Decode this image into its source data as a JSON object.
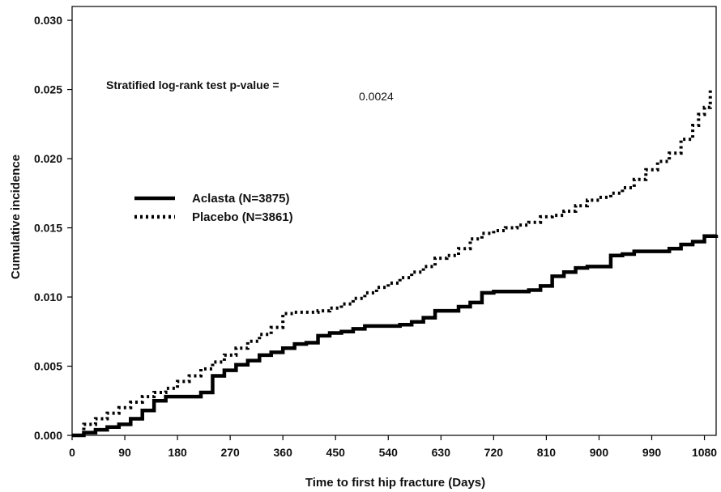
{
  "chart_data": {
    "type": "line",
    "title": "",
    "xlabel": "Time to first hip fracture (Days)",
    "ylabel": "Cumulative incidence",
    "xlim": [
      0,
      1100
    ],
    "ylim": [
      0,
      0.031
    ],
    "x_ticks": [
      0,
      90,
      180,
      270,
      360,
      450,
      540,
      630,
      720,
      810,
      900,
      990,
      1080
    ],
    "x_tick_labels": [
      "0",
      "90",
      "180",
      "270",
      "360",
      "450",
      "540",
      "630",
      "720",
      "810",
      "900",
      "990",
      "1080"
    ],
    "y_ticks": [
      0,
      0.005,
      0.01,
      0.015,
      0.02,
      0.025,
      0.03
    ],
    "y_tick_labels": [
      "0.000",
      "0.005",
      "0.010",
      "0.015",
      "0.020",
      "0.025",
      "0.030"
    ],
    "grid": false,
    "legend_position": "center-left",
    "annotation": {
      "label": "Stratified log-rank test p-value =",
      "value": "0.0024"
    },
    "series": [
      {
        "name": "Aclasta (N=3875)",
        "style": "solid",
        "color": "#000000",
        "x": [
          0,
          20,
          40,
          60,
          80,
          100,
          120,
          140,
          160,
          180,
          200,
          220,
          240,
          260,
          280,
          300,
          320,
          340,
          360,
          380,
          400,
          420,
          440,
          460,
          480,
          500,
          520,
          540,
          560,
          580,
          600,
          620,
          640,
          660,
          680,
          700,
          720,
          740,
          760,
          780,
          800,
          820,
          840,
          860,
          880,
          900,
          920,
          940,
          960,
          980,
          1000,
          1020,
          1040,
          1060,
          1080,
          1100
        ],
        "values": [
          0.0,
          0.0002,
          0.0004,
          0.0006,
          0.0008,
          0.0012,
          0.0018,
          0.0025,
          0.0028,
          0.0028,
          0.0028,
          0.0031,
          0.0043,
          0.0047,
          0.0051,
          0.0054,
          0.0058,
          0.006,
          0.0063,
          0.0066,
          0.0067,
          0.0072,
          0.0074,
          0.0075,
          0.0077,
          0.0079,
          0.0079,
          0.0079,
          0.008,
          0.0082,
          0.0085,
          0.009,
          0.009,
          0.0093,
          0.0096,
          0.0103,
          0.0104,
          0.0104,
          0.0104,
          0.0105,
          0.0108,
          0.0115,
          0.0118,
          0.0121,
          0.0122,
          0.0122,
          0.013,
          0.0131,
          0.0133,
          0.0133,
          0.0133,
          0.0135,
          0.0138,
          0.014,
          0.0144,
          0.0145
        ]
      },
      {
        "name": "Placebo (N=3861)",
        "style": "dotted",
        "color": "#000000",
        "x": [
          0,
          20,
          40,
          60,
          80,
          100,
          120,
          140,
          160,
          180,
          200,
          220,
          240,
          260,
          280,
          300,
          320,
          340,
          360,
          380,
          400,
          420,
          440,
          460,
          480,
          500,
          520,
          540,
          560,
          580,
          600,
          620,
          640,
          660,
          680,
          700,
          720,
          740,
          760,
          780,
          800,
          820,
          840,
          860,
          880,
          900,
          920,
          940,
          960,
          980,
          1000,
          1020,
          1040,
          1060,
          1070,
          1080,
          1090
        ],
        "values": [
          0.0,
          0.0008,
          0.0012,
          0.0016,
          0.002,
          0.0024,
          0.0028,
          0.0031,
          0.0034,
          0.0039,
          0.0043,
          0.0048,
          0.0053,
          0.0058,
          0.0063,
          0.0068,
          0.0073,
          0.0078,
          0.0088,
          0.0089,
          0.0089,
          0.009,
          0.0092,
          0.0095,
          0.0099,
          0.0103,
          0.0107,
          0.011,
          0.0114,
          0.0118,
          0.0122,
          0.0128,
          0.013,
          0.0135,
          0.0142,
          0.0146,
          0.0148,
          0.015,
          0.0152,
          0.0154,
          0.0158,
          0.0159,
          0.0162,
          0.0166,
          0.017,
          0.0172,
          0.0175,
          0.0179,
          0.0185,
          0.0192,
          0.0198,
          0.0204,
          0.0214,
          0.0224,
          0.0232,
          0.0237,
          0.025
        ]
      }
    ]
  }
}
